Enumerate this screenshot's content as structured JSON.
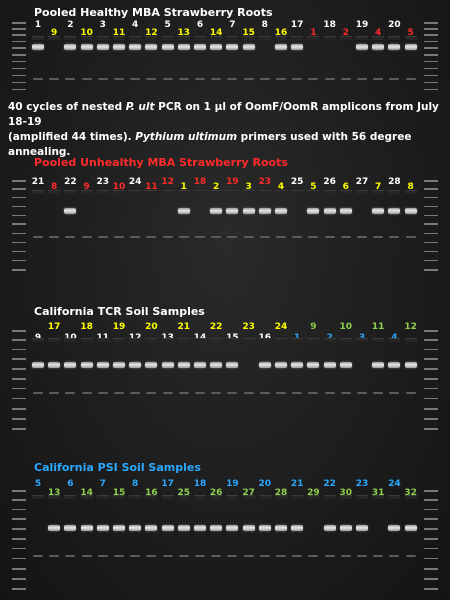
{
  "colors": {
    "white": "#ffffff",
    "yellow": "#ffff00",
    "red": "#ff2a2a",
    "blue": "#2aa9ff",
    "green": "#8ed04b"
  },
  "note": {
    "line1_a": "40 cycles of nested ",
    "line1_i": "P. ult",
    "line1_b": " PCR on 1 µl of OomF/OomR  amplicons  from July 18-19",
    "line2_a": "(amplified 44 times). ",
    "line2_i": "Pythium ultimum",
    "line2_b": " primers used with 56 degree annealing."
  },
  "gels": [
    {
      "id": "gel-1",
      "title": "Pooled Healthy  MBA Strawberry Roots",
      "title_color": "white",
      "lanes": [
        {
          "label": "1",
          "color": "white",
          "row": "top",
          "band": 1
        },
        {
          "label": "9",
          "color": "yellow",
          "row": "bottom",
          "band": 0
        },
        {
          "label": "2",
          "color": "white",
          "row": "top",
          "band": 1
        },
        {
          "label": "10",
          "color": "yellow",
          "row": "bottom",
          "band": 1
        },
        {
          "label": "3",
          "color": "white",
          "row": "top",
          "band": 1
        },
        {
          "label": "11",
          "color": "yellow",
          "row": "bottom",
          "band": 1
        },
        {
          "label": "4",
          "color": "white",
          "row": "top",
          "band": 1
        },
        {
          "label": "12",
          "color": "yellow",
          "row": "bottom",
          "band": 1
        },
        {
          "label": "5",
          "color": "white",
          "row": "top",
          "band": 1
        },
        {
          "label": "13",
          "color": "yellow",
          "row": "bottom",
          "band": 1
        },
        {
          "label": "6",
          "color": "white",
          "row": "top",
          "band": 1
        },
        {
          "label": "14",
          "color": "yellow",
          "row": "bottom",
          "band": 1
        },
        {
          "label": "7",
          "color": "white",
          "row": "top",
          "band": 1
        },
        {
          "label": "15",
          "color": "yellow",
          "row": "bottom",
          "band": 1
        },
        {
          "label": "8",
          "color": "white",
          "row": "top",
          "band": 0
        },
        {
          "label": "16",
          "color": "yellow",
          "row": "bottom",
          "band": 1
        },
        {
          "label": "17",
          "color": "white",
          "row": "top",
          "band": 1
        },
        {
          "label": "1",
          "color": "red",
          "row": "bottom",
          "band": 0
        },
        {
          "label": "18",
          "color": "white",
          "row": "top",
          "band": 0
        },
        {
          "label": "2",
          "color": "red",
          "row": "bottom",
          "band": 0
        },
        {
          "label": "19",
          "color": "white",
          "row": "top",
          "band": 1
        },
        {
          "label": "4",
          "color": "red",
          "row": "bottom",
          "band": 1
        },
        {
          "label": "20",
          "color": "white",
          "row": "top",
          "band": 1
        },
        {
          "label": "5",
          "color": "red",
          "row": "bottom",
          "band": 1
        }
      ]
    },
    {
      "id": "gel-2",
      "title": "Pooled Unhealthy  MBA Strawberry Roots",
      "title_color": "red",
      "lanes": [
        {
          "label": "21",
          "color": "white",
          "row": "top",
          "band": 0
        },
        {
          "label": "8",
          "color": "red",
          "row": "bottom",
          "band": 0
        },
        {
          "label": "22",
          "color": "white",
          "row": "top",
          "band": 1
        },
        {
          "label": "9",
          "color": "red",
          "row": "bottom",
          "band": 0
        },
        {
          "label": "23",
          "color": "white",
          "row": "top",
          "band": 0
        },
        {
          "label": "10",
          "color": "red",
          "row": "bottom",
          "band": 0
        },
        {
          "label": "24",
          "color": "white",
          "row": "top",
          "band": 0
        },
        {
          "label": "11",
          "color": "red",
          "row": "bottom",
          "band": 0
        },
        {
          "label": "12",
          "color": "red",
          "row": "top",
          "band": 0
        },
        {
          "label": "1",
          "color": "yellow",
          "row": "bottom",
          "band": 1
        },
        {
          "label": "18",
          "color": "red",
          "row": "top",
          "band": 0
        },
        {
          "label": "2",
          "color": "yellow",
          "row": "bottom",
          "band": 1
        },
        {
          "label": "19",
          "color": "red",
          "row": "top",
          "band": 1
        },
        {
          "label": "3",
          "color": "yellow",
          "row": "bottom",
          "band": 1
        },
        {
          "label": "23",
          "color": "red",
          "row": "top",
          "band": 1
        },
        {
          "label": "4",
          "color": "yellow",
          "row": "bottom",
          "band": 1
        },
        {
          "label": "25",
          "color": "white",
          "row": "top",
          "band": 0
        },
        {
          "label": "5",
          "color": "yellow",
          "row": "bottom",
          "band": 1
        },
        {
          "label": "26",
          "color": "white",
          "row": "top",
          "band": 1
        },
        {
          "label": "6",
          "color": "yellow",
          "row": "bottom",
          "band": 1
        },
        {
          "label": "27",
          "color": "white",
          "row": "top",
          "band": 0
        },
        {
          "label": "7",
          "color": "yellow",
          "row": "bottom",
          "band": 1
        },
        {
          "label": "28",
          "color": "white",
          "row": "top",
          "band": 1
        },
        {
          "label": "8",
          "color": "yellow",
          "row": "bottom",
          "band": 1
        }
      ]
    },
    {
      "id": "gel-3",
      "title": "California TCR Soil Samples",
      "title_color": "white",
      "lanes": [
        {
          "label": "9",
          "color": "white",
          "row": "bottom",
          "band": 1
        },
        {
          "label": "17",
          "color": "yellow",
          "row": "top",
          "band": 1
        },
        {
          "label": "10",
          "color": "white",
          "row": "bottom",
          "band": 1
        },
        {
          "label": "18",
          "color": "yellow",
          "row": "top",
          "band": 1
        },
        {
          "label": "11",
          "color": "white",
          "row": "bottom",
          "band": 1
        },
        {
          "label": "19",
          "color": "yellow",
          "row": "top",
          "band": 1
        },
        {
          "label": "12",
          "color": "white",
          "row": "bottom",
          "band": 1
        },
        {
          "label": "20",
          "color": "yellow",
          "row": "top",
          "band": 1
        },
        {
          "label": "13",
          "color": "white",
          "row": "bottom",
          "band": 1
        },
        {
          "label": "21",
          "color": "yellow",
          "row": "top",
          "band": 1
        },
        {
          "label": "14",
          "color": "white",
          "row": "bottom",
          "band": 1
        },
        {
          "label": "22",
          "color": "yellow",
          "row": "top",
          "band": 1
        },
        {
          "label": "15",
          "color": "white",
          "row": "bottom",
          "band": 1
        },
        {
          "label": "23",
          "color": "yellow",
          "row": "top",
          "band": 0
        },
        {
          "label": "16",
          "color": "white",
          "row": "bottom",
          "band": 1
        },
        {
          "label": "24",
          "color": "yellow",
          "row": "top",
          "band": 1
        },
        {
          "label": "1",
          "color": "blue",
          "row": "bottom",
          "band": 1
        },
        {
          "label": "9",
          "color": "green",
          "row": "top",
          "band": 1
        },
        {
          "label": "2",
          "color": "blue",
          "row": "bottom",
          "band": 1
        },
        {
          "label": "10",
          "color": "green",
          "row": "top",
          "band": 1
        },
        {
          "label": "3",
          "color": "blue",
          "row": "bottom",
          "band": 0
        },
        {
          "label": "11",
          "color": "green",
          "row": "top",
          "band": 1
        },
        {
          "label": "4",
          "color": "blue",
          "row": "bottom",
          "band": 1
        },
        {
          "label": "12",
          "color": "green",
          "row": "top",
          "band": 1
        }
      ]
    },
    {
      "id": "gel-4",
      "title": "California PSI Soil Samples",
      "title_color": "blue",
      "lanes": [
        {
          "label": "5",
          "color": "blue",
          "row": "top",
          "band": 0
        },
        {
          "label": "13",
          "color": "green",
          "row": "bottom",
          "band": 1
        },
        {
          "label": "6",
          "color": "blue",
          "row": "top",
          "band": 1
        },
        {
          "label": "14",
          "color": "green",
          "row": "bottom",
          "band": 1
        },
        {
          "label": "7",
          "color": "blue",
          "row": "top",
          "band": 1
        },
        {
          "label": "15",
          "color": "green",
          "row": "bottom",
          "band": 1
        },
        {
          "label": "8",
          "color": "blue",
          "row": "top",
          "band": 1
        },
        {
          "label": "16",
          "color": "green",
          "row": "bottom",
          "band": 1
        },
        {
          "label": "17",
          "color": "blue",
          "row": "top",
          "band": 1
        },
        {
          "label": "25",
          "color": "green",
          "row": "bottom",
          "band": 1
        },
        {
          "label": "18",
          "color": "blue",
          "row": "top",
          "band": 1
        },
        {
          "label": "26",
          "color": "green",
          "row": "bottom",
          "band": 1
        },
        {
          "label": "19",
          "color": "blue",
          "row": "top",
          "band": 1
        },
        {
          "label": "27",
          "color": "green",
          "row": "bottom",
          "band": 1
        },
        {
          "label": "20",
          "color": "blue",
          "row": "top",
          "band": 1
        },
        {
          "label": "28",
          "color": "green",
          "row": "bottom",
          "band": 1
        },
        {
          "label": "21",
          "color": "blue",
          "row": "top",
          "band": 1
        },
        {
          "label": "29",
          "color": "green",
          "row": "bottom",
          "band": 0
        },
        {
          "label": "22",
          "color": "blue",
          "row": "top",
          "band": 1
        },
        {
          "label": "30",
          "color": "green",
          "row": "bottom",
          "band": 1
        },
        {
          "label": "23",
          "color": "blue",
          "row": "top",
          "band": 1
        },
        {
          "label": "31",
          "color": "green",
          "row": "bottom",
          "band": 0
        },
        {
          "label": "24",
          "color": "blue",
          "row": "top",
          "band": 1
        },
        {
          "label": "32",
          "color": "green",
          "row": "bottom",
          "band": 1
        }
      ]
    }
  ]
}
